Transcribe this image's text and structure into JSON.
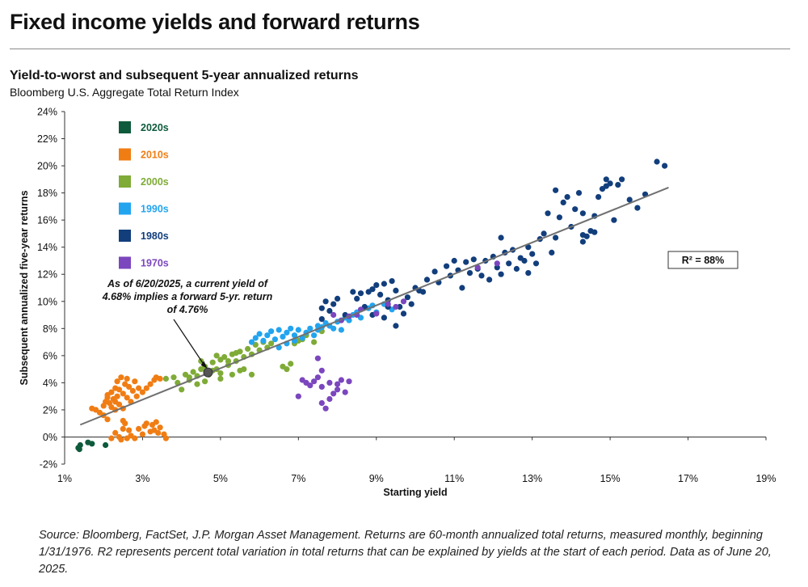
{
  "header": {
    "title": "Fixed income yields and forward returns"
  },
  "source_note": "Source: Bloomberg, FactSet, J.P. Morgan Asset Management. Returns are 60-month annualized total returns, measured monthly, beginning 1/31/1976. R2 represents percent total variation in total returns that can be explained by yields at the start of each period. Data as of June 20, 2025.",
  "chart_data": {
    "type": "scatter",
    "title": "Yield-to-worst and subsequent 5-year annualized returns",
    "subtitle": "Bloomberg U.S. Aggregate Total Return Index",
    "xlabel": "Starting yield",
    "ylabel": "Subsequent annualized five-year returns",
    "xlim": [
      1,
      19
    ],
    "ylim": [
      -2,
      24
    ],
    "x_ticks": [
      1,
      3,
      5,
      7,
      9,
      11,
      13,
      15,
      17,
      19
    ],
    "x_tick_labels": [
      "1%",
      "3%",
      "5%",
      "7%",
      "9%",
      "11%",
      "13%",
      "15%",
      "17%",
      "19%"
    ],
    "y_ticks": [
      -2,
      0,
      2,
      4,
      6,
      8,
      10,
      12,
      14,
      16,
      18,
      20,
      22,
      24
    ],
    "y_tick_labels": [
      "-2%",
      "0%",
      "2%",
      "4%",
      "6%",
      "8%",
      "10%",
      "12%",
      "14%",
      "16%",
      "18%",
      "20%",
      "22%",
      "24%"
    ],
    "grid": false,
    "legend_position": "top-left",
    "colors": {
      "2020s": "#0e5a3c",
      "2010s": "#f07d14",
      "2000s": "#7fab37",
      "1990s": "#22a4ef",
      "1980s": "#123e7c",
      "1970s": "#7b46be",
      "trendline": "#707070",
      "current_marker": "#555555"
    },
    "trendline": {
      "x": [
        1.4,
        16.5
      ],
      "y": [
        0.9,
        18.4
      ]
    },
    "current_point": {
      "x": 4.68,
      "y": 4.76
    },
    "annotation": {
      "lines": [
        "As of 6/20/2025, a current yield of",
        "4.68% implies a forward 5-yr. return",
        "of 4.76%"
      ]
    },
    "r_squared_label": "R² = 88%",
    "series": [
      {
        "name": "2020s",
        "points": [
          [
            1.35,
            -0.8
          ],
          [
            1.4,
            -0.6
          ],
          [
            1.6,
            -0.4
          ],
          [
            1.7,
            -0.5
          ],
          [
            2.05,
            -0.6
          ],
          [
            1.38,
            -0.9
          ]
        ]
      },
      {
        "name": "2010s",
        "points": [
          [
            1.7,
            2.1
          ],
          [
            1.8,
            2.0
          ],
          [
            1.9,
            1.8
          ],
          [
            2.0,
            2.3
          ],
          [
            2.05,
            2.6
          ],
          [
            2.1,
            2.9
          ],
          [
            2.1,
            3.1
          ],
          [
            2.15,
            2.5
          ],
          [
            2.2,
            3.3
          ],
          [
            2.2,
            2.2
          ],
          [
            2.25,
            2.8
          ],
          [
            2.3,
            3.6
          ],
          [
            2.3,
            2.6
          ],
          [
            2.35,
            4.1
          ],
          [
            2.35,
            3.0
          ],
          [
            2.4,
            3.5
          ],
          [
            2.4,
            2.4
          ],
          [
            2.45,
            4.4
          ],
          [
            2.5,
            3.2
          ],
          [
            2.5,
            2.1
          ],
          [
            2.55,
            3.9
          ],
          [
            2.6,
            4.3
          ],
          [
            2.6,
            2.9
          ],
          [
            2.65,
            3.7
          ],
          [
            2.7,
            2.6
          ],
          [
            2.75,
            3.4
          ],
          [
            2.8,
            4.1
          ],
          [
            2.85,
            3.0
          ],
          [
            2.9,
            3.6
          ],
          [
            3.0,
            3.3
          ],
          [
            3.1,
            3.6
          ],
          [
            3.2,
            3.9
          ],
          [
            3.3,
            4.2
          ],
          [
            3.35,
            4.4
          ],
          [
            3.45,
            4.3
          ],
          [
            2.0,
            1.6
          ],
          [
            2.1,
            1.3
          ],
          [
            2.3,
            2.0
          ],
          [
            2.4,
            0.0
          ],
          [
            2.2,
            -0.1
          ],
          [
            2.3,
            0.3
          ],
          [
            2.45,
            -0.2
          ],
          [
            2.5,
            0.6
          ],
          [
            2.55,
            1.0
          ],
          [
            2.6,
            -0.1
          ],
          [
            2.65,
            0.5
          ],
          [
            2.7,
            0.1
          ],
          [
            2.8,
            -0.1
          ],
          [
            2.9,
            0.6
          ],
          [
            3.0,
            0.2
          ],
          [
            3.05,
            0.8
          ],
          [
            3.1,
            1.0
          ],
          [
            3.2,
            0.4
          ],
          [
            3.25,
            0.9
          ],
          [
            3.3,
            0.5
          ],
          [
            3.4,
            0.3
          ],
          [
            3.45,
            0.7
          ],
          [
            3.55,
            0.2
          ],
          [
            3.6,
            -0.1
          ],
          [
            2.5,
            1.2
          ],
          [
            3.35,
            1.1
          ]
        ]
      },
      {
        "name": "2000s",
        "points": [
          [
            3.6,
            4.3
          ],
          [
            3.8,
            4.4
          ],
          [
            3.9,
            4.0
          ],
          [
            4.0,
            3.5
          ],
          [
            4.1,
            4.6
          ],
          [
            4.2,
            4.2
          ],
          [
            4.3,
            4.8
          ],
          [
            4.4,
            4.5
          ],
          [
            4.5,
            5.0
          ],
          [
            4.6,
            5.2
          ],
          [
            4.7,
            4.6
          ],
          [
            4.8,
            5.5
          ],
          [
            4.9,
            5.0
          ],
          [
            5.0,
            5.7
          ],
          [
            5.0,
            4.7
          ],
          [
            5.1,
            5.9
          ],
          [
            5.2,
            5.3
          ],
          [
            5.3,
            6.1
          ],
          [
            5.4,
            5.6
          ],
          [
            5.5,
            6.3
          ],
          [
            5.6,
            5.9
          ],
          [
            5.7,
            6.5
          ],
          [
            5.8,
            6.1
          ],
          [
            5.9,
            6.8
          ],
          [
            6.0,
            6.4
          ],
          [
            6.1,
            7.0
          ],
          [
            6.2,
            6.6
          ],
          [
            5.6,
            5.0
          ],
          [
            5.8,
            4.6
          ],
          [
            5.3,
            4.6
          ],
          [
            5.0,
            4.3
          ],
          [
            5.5,
            4.9
          ],
          [
            6.6,
            5.2
          ],
          [
            6.7,
            5.0
          ],
          [
            6.8,
            5.4
          ],
          [
            7.0,
            7.1
          ],
          [
            7.2,
            7.5
          ],
          [
            7.4,
            7.0
          ],
          [
            7.6,
            7.8
          ],
          [
            6.9,
            6.9
          ],
          [
            4.4,
            3.9
          ],
          [
            4.6,
            4.1
          ],
          [
            4.8,
            4.9
          ],
          [
            5.2,
            5.6
          ],
          [
            5.4,
            6.2
          ],
          [
            6.3,
            6.9
          ],
          [
            7.1,
            7.2
          ],
          [
            4.2,
            4.4
          ],
          [
            4.5,
            5.6
          ],
          [
            4.9,
            6.0
          ]
        ]
      },
      {
        "name": "1990s",
        "points": [
          [
            5.8,
            7.0
          ],
          [
            5.9,
            7.3
          ],
          [
            6.0,
            7.6
          ],
          [
            6.1,
            7.1
          ],
          [
            6.2,
            7.5
          ],
          [
            6.3,
            7.8
          ],
          [
            6.4,
            7.2
          ],
          [
            6.5,
            7.9
          ],
          [
            6.6,
            7.4
          ],
          [
            6.7,
            7.7
          ],
          [
            6.8,
            8.0
          ],
          [
            6.9,
            7.5
          ],
          [
            7.0,
            7.9
          ],
          [
            7.1,
            7.3
          ],
          [
            7.2,
            7.7
          ],
          [
            7.3,
            8.0
          ],
          [
            7.4,
            7.5
          ],
          [
            7.5,
            7.9
          ],
          [
            7.6,
            8.1
          ],
          [
            7.8,
            8.2
          ],
          [
            8.0,
            8.5
          ],
          [
            8.1,
            7.9
          ],
          [
            8.3,
            8.6
          ],
          [
            8.4,
            9.0
          ],
          [
            8.5,
            9.2
          ],
          [
            8.6,
            8.8
          ],
          [
            8.8,
            9.5
          ],
          [
            8.9,
            9.7
          ],
          [
            9.0,
            9.2
          ],
          [
            9.2,
            9.8
          ],
          [
            9.4,
            9.4
          ],
          [
            6.5,
            6.6
          ],
          [
            6.7,
            6.9
          ],
          [
            6.9,
            7.1
          ],
          [
            7.5,
            8.2
          ],
          [
            7.7,
            8.4
          ],
          [
            7.9,
            8.0
          ],
          [
            8.2,
            8.8
          ]
        ]
      },
      {
        "name": "1980s",
        "points": [
          [
            7.6,
            8.7
          ],
          [
            7.6,
            9.5
          ],
          [
            7.7,
            10.0
          ],
          [
            7.8,
            9.3
          ],
          [
            7.9,
            9.8
          ],
          [
            8.0,
            10.2
          ],
          [
            8.2,
            9.0
          ],
          [
            8.4,
            10.7
          ],
          [
            8.5,
            10.2
          ],
          [
            8.6,
            10.6
          ],
          [
            8.7,
            9.6
          ],
          [
            8.8,
            10.7
          ],
          [
            8.9,
            10.9
          ],
          [
            9.0,
            11.2
          ],
          [
            9.1,
            10.5
          ],
          [
            9.2,
            11.3
          ],
          [
            9.3,
            10.1
          ],
          [
            9.4,
            11.5
          ],
          [
            9.5,
            10.8
          ],
          [
            9.6,
            9.6
          ],
          [
            9.7,
            9.1
          ],
          [
            9.8,
            10.3
          ],
          [
            9.9,
            9.8
          ],
          [
            10.0,
            11.0
          ],
          [
            10.2,
            10.7
          ],
          [
            10.3,
            11.6
          ],
          [
            10.5,
            12.2
          ],
          [
            10.6,
            11.4
          ],
          [
            10.8,
            12.6
          ],
          [
            10.9,
            11.9
          ],
          [
            11.0,
            13.0
          ],
          [
            11.1,
            12.3
          ],
          [
            11.2,
            11.0
          ],
          [
            11.3,
            12.9
          ],
          [
            11.4,
            12.1
          ],
          [
            11.5,
            13.1
          ],
          [
            11.6,
            12.4
          ],
          [
            11.7,
            11.9
          ],
          [
            11.8,
            13.0
          ],
          [
            12.0,
            13.3
          ],
          [
            12.1,
            12.5
          ],
          [
            12.2,
            14.7
          ],
          [
            12.3,
            13.6
          ],
          [
            12.4,
            12.8
          ],
          [
            12.5,
            13.8
          ],
          [
            12.6,
            12.4
          ],
          [
            12.7,
            13.2
          ],
          [
            12.8,
            13.0
          ],
          [
            12.9,
            14.0
          ],
          [
            13.0,
            13.5
          ],
          [
            13.1,
            12.8
          ],
          [
            13.2,
            14.6
          ],
          [
            13.3,
            15.0
          ],
          [
            13.4,
            16.5
          ],
          [
            13.5,
            13.6
          ],
          [
            13.6,
            14.7
          ],
          [
            13.7,
            16.2
          ],
          [
            13.8,
            17.3
          ],
          [
            13.9,
            17.7
          ],
          [
            14.0,
            15.5
          ],
          [
            14.1,
            16.8
          ],
          [
            14.2,
            18.0
          ],
          [
            14.3,
            16.5
          ],
          [
            14.4,
            14.8
          ],
          [
            14.5,
            15.2
          ],
          [
            14.6,
            16.3
          ],
          [
            14.7,
            17.7
          ],
          [
            14.8,
            18.3
          ],
          [
            14.9,
            19.0
          ],
          [
            15.0,
            18.7
          ],
          [
            15.1,
            16.0
          ],
          [
            15.2,
            18.6
          ],
          [
            15.3,
            19.0
          ],
          [
            15.5,
            17.5
          ],
          [
            15.7,
            16.9
          ],
          [
            15.9,
            17.9
          ],
          [
            16.2,
            20.3
          ],
          [
            16.4,
            20.0
          ],
          [
            14.3,
            14.4
          ],
          [
            14.6,
            15.1
          ],
          [
            14.9,
            18.5
          ],
          [
            13.6,
            18.2
          ],
          [
            14.3,
            14.9
          ],
          [
            9.5,
            8.2
          ],
          [
            9.2,
            8.8
          ],
          [
            8.9,
            9.0
          ],
          [
            9.3,
            9.6
          ],
          [
            10.1,
            10.8
          ],
          [
            11.9,
            11.6
          ],
          [
            12.2,
            12.0
          ],
          [
            12.9,
            12.1
          ]
        ]
      },
      {
        "name": "1970s",
        "points": [
          [
            7.0,
            3.0
          ],
          [
            7.1,
            4.2
          ],
          [
            7.2,
            4.0
          ],
          [
            7.3,
            3.8
          ],
          [
            7.4,
            4.1
          ],
          [
            7.5,
            4.4
          ],
          [
            7.5,
            5.8
          ],
          [
            7.6,
            2.5
          ],
          [
            7.6,
            3.7
          ],
          [
            7.7,
            2.1
          ],
          [
            7.8,
            4.0
          ],
          [
            7.9,
            3.2
          ],
          [
            8.0,
            3.5
          ],
          [
            8.1,
            4.2
          ],
          [
            8.2,
            3.3
          ],
          [
            8.3,
            4.1
          ],
          [
            7.6,
            4.9
          ],
          [
            7.8,
            2.8
          ],
          [
            8.0,
            3.9
          ],
          [
            8.1,
            8.6
          ],
          [
            8.3,
            8.9
          ],
          [
            8.6,
            9.4
          ],
          [
            9.0,
            9.1
          ],
          [
            9.3,
            9.8
          ],
          [
            9.5,
            9.6
          ],
          [
            9.7,
            10.0
          ],
          [
            7.9,
            9.0
          ],
          [
            8.5,
            9.0
          ],
          [
            11.6,
            12.5
          ],
          [
            12.1,
            12.8
          ]
        ]
      }
    ]
  }
}
